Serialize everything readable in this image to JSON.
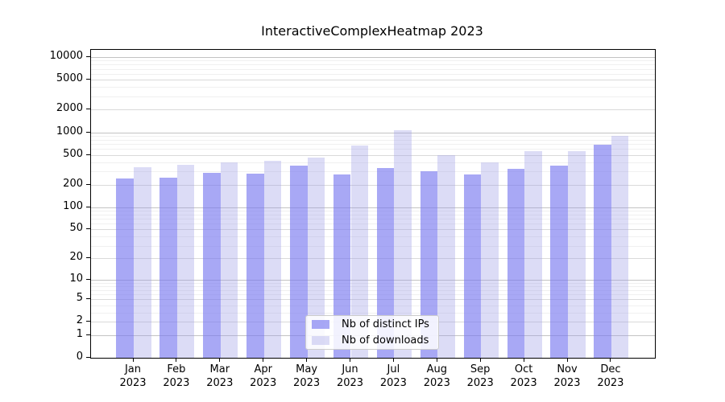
{
  "chart_data": {
    "type": "bar",
    "title": "InteractiveComplexHeatmap 2023",
    "categories": [
      "Jan",
      "Feb",
      "Mar",
      "Apr",
      "May",
      "Jun",
      "Jul",
      "Aug",
      "Sep",
      "Oct",
      "Nov",
      "Dec"
    ],
    "year_label": "2023",
    "series": [
      {
        "name": "Nb of distinct IPs",
        "color": "#a8a8f4",
        "fill": "rgba(122,122,240,0.65)",
        "values": [
          241,
          247,
          287,
          282,
          355,
          277,
          330,
          301,
          272,
          327,
          355,
          685
        ]
      },
      {
        "name": "Nb of downloads",
        "color": "#dcdcf6",
        "fill": "rgba(155,155,230,0.35)",
        "values": [
          344,
          364,
          395,
          419,
          465,
          674,
          1058,
          492,
          395,
          563,
          563,
          885
        ]
      }
    ],
    "y_axis": {
      "scale": "log1p",
      "tick_labels": [
        "10000",
        "5000",
        "2000",
        "1000",
        "500",
        "200",
        "100",
        "50",
        "20",
        "10",
        "5",
        "2",
        "1",
        "0"
      ],
      "ylim_top": 12400
    },
    "x_axis": {
      "tick_position": "group-center"
    },
    "grid": {
      "major_color": "#c3c3c3",
      "labeled_color": "#dadada",
      "minor_color": "#f0f0f0"
    },
    "legend": {
      "position": "lower-center"
    }
  }
}
